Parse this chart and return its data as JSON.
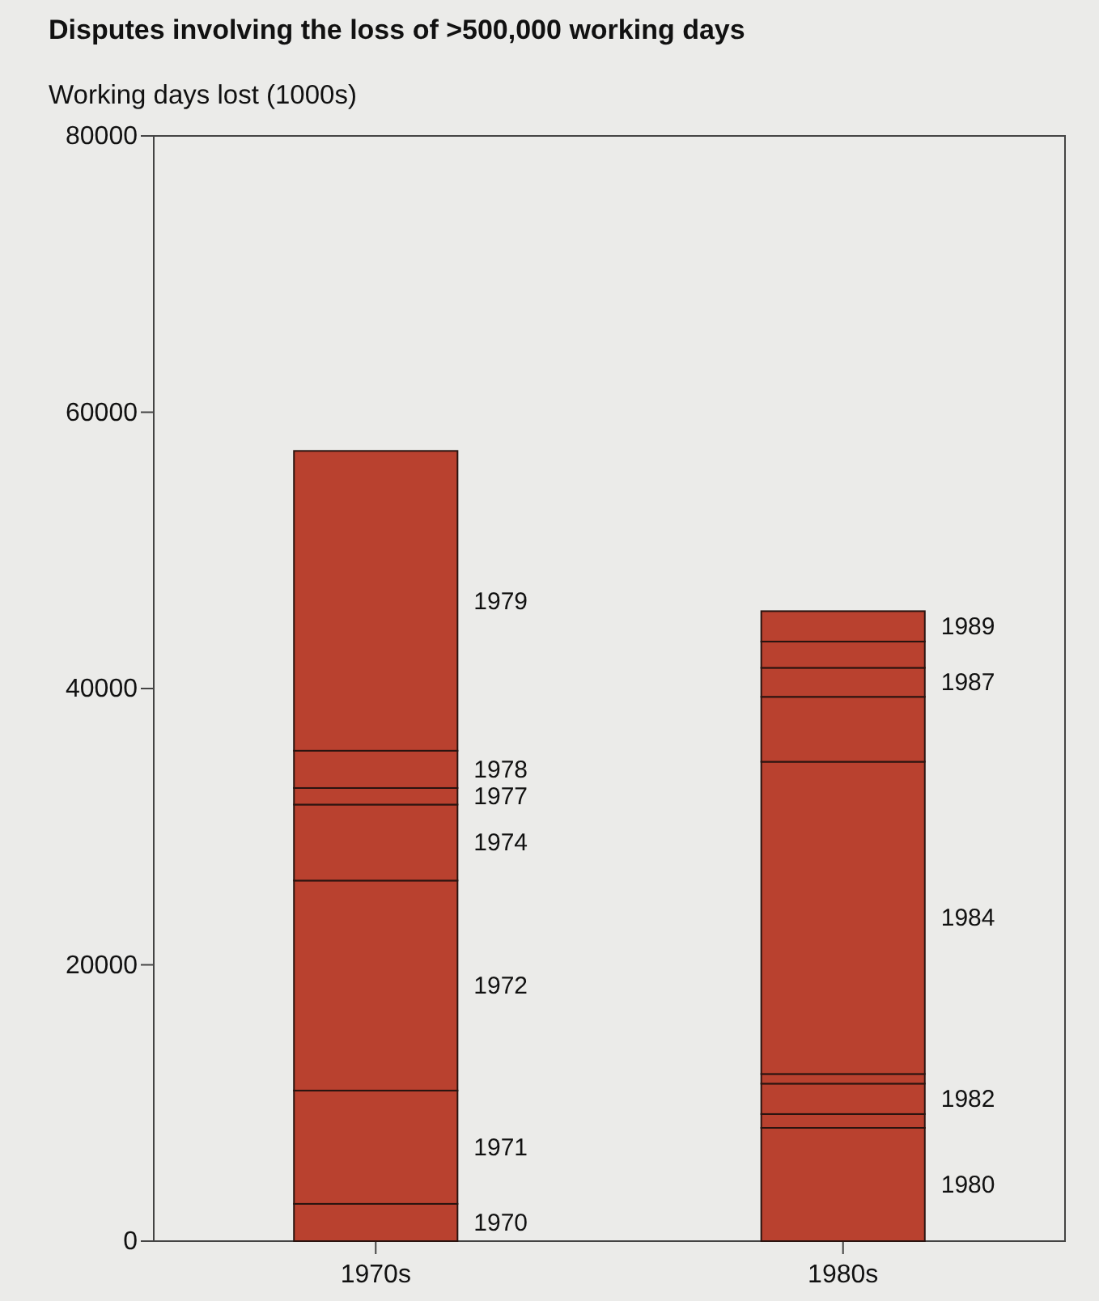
{
  "chart_data": {
    "type": "bar",
    "title": "Disputes involving the loss of >500,000 working days",
    "ylabel": "Working days lost (1000s)",
    "categories": [
      "1970s",
      "1980s"
    ],
    "stacked": true,
    "ylim": [
      0,
      80000
    ],
    "yticks": [
      0,
      20000,
      40000,
      60000,
      80000
    ],
    "grid": false,
    "legend": false,
    "series": [
      {
        "name": "1970",
        "color": "#b9412f",
        "values": [
          2700,
          null
        ]
      },
      {
        "name": "1971",
        "color": "#b9412f",
        "values": [
          8200,
          null
        ]
      },
      {
        "name": "1972",
        "color": "#b9412f",
        "values": [
          15200,
          null
        ]
      },
      {
        "name": "1974",
        "color": "#b9412f",
        "values": [
          5500,
          null
        ]
      },
      {
        "name": "1977",
        "color": "#b9412f",
        "values": [
          1200,
          null
        ]
      },
      {
        "name": "1978",
        "color": "#b9412f",
        "values": [
          2700,
          null
        ]
      },
      {
        "name": "1979",
        "color": "#b9412f",
        "values": [
          21700,
          null
        ]
      },
      {
        "name": "1980",
        "color": "#b9412f",
        "values": [
          null,
          8200
        ]
      },
      {
        "color": "#b9412f",
        "values": [
          null,
          1000
        ]
      },
      {
        "name": "1982",
        "color": "#b9412f",
        "values": [
          null,
          2200
        ]
      },
      {
        "color": "#b9412f",
        "values": [
          null,
          700
        ]
      },
      {
        "name": "1984",
        "color": "#b9412f",
        "values": [
          null,
          22600
        ]
      },
      {
        "color": "#b9412f",
        "values": [
          null,
          4700
        ]
      },
      {
        "name": "1987",
        "color": "#b9412f",
        "values": [
          null,
          2100
        ]
      },
      {
        "color": "#b9412f",
        "values": [
          null,
          1900
        ]
      },
      {
        "name": "1989",
        "color": "#b9412f",
        "values": [
          null,
          2200
        ]
      }
    ]
  }
}
